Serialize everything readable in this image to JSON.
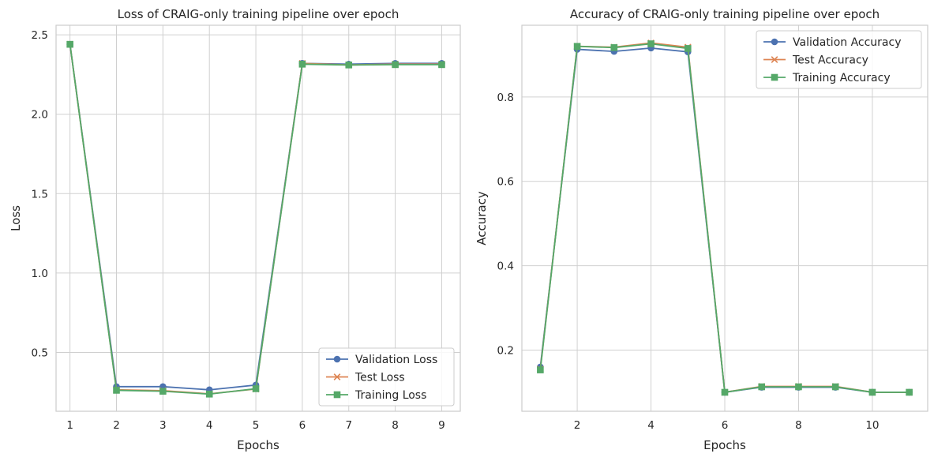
{
  "colors": {
    "validation": "#4c72b0",
    "test": "#dd8452",
    "training": "#55a868",
    "grid": "#d0d0d0",
    "frame": "#cccccc"
  },
  "chart_data": [
    {
      "type": "line",
      "title": "Loss of CRAIG-only training pipeline over epoch",
      "xlabel": "Epochs",
      "ylabel": "Loss",
      "xlim": [
        0.7,
        9.4
      ],
      "ylim": [
        0.13,
        2.56
      ],
      "xticks": [
        1,
        2,
        3,
        4,
        5,
        6,
        7,
        8,
        9
      ],
      "yticks": [
        0.5,
        1.0,
        1.5,
        2.0,
        2.5
      ],
      "ytick_labels": [
        "0.5",
        "1.0",
        "1.5",
        "2.0",
        "2.5"
      ],
      "grid": true,
      "legend_position": "lower-right",
      "x": [
        1,
        2,
        3,
        4,
        5,
        6,
        7,
        8,
        9
      ],
      "series": [
        {
          "name": "Validation Loss",
          "marker": "circle",
          "color": "validation",
          "values": [
            2.44,
            0.285,
            0.285,
            0.265,
            0.295,
            2.32,
            2.315,
            2.32,
            2.32
          ]
        },
        {
          "name": "Test Loss",
          "marker": "x",
          "color": "test",
          "values": [
            2.44,
            0.265,
            0.26,
            0.24,
            0.27,
            2.32,
            2.31,
            2.315,
            2.315
          ]
        },
        {
          "name": "Training Loss",
          "marker": "square",
          "color": "training",
          "values": [
            2.44,
            0.262,
            0.256,
            0.238,
            0.272,
            2.315,
            2.31,
            2.312,
            2.312
          ]
        }
      ]
    },
    {
      "type": "line",
      "title": "Accuracy of CRAIG-only training pipeline over epoch",
      "xlabel": "Epochs",
      "ylabel": "Accuracy",
      "xlim": [
        0.5,
        11.5
      ],
      "ylim": [
        0.055,
        0.97
      ],
      "xticks": [
        2,
        4,
        6,
        8,
        10
      ],
      "yticks": [
        0.2,
        0.4,
        0.6,
        0.8
      ],
      "ytick_labels": [
        "0.2",
        "0.4",
        "0.6",
        "0.8"
      ],
      "grid": true,
      "legend_position": "upper-right",
      "x": [
        1,
        2,
        3,
        4,
        5,
        6,
        7,
        8,
        9,
        10,
        11
      ],
      "series": [
        {
          "name": "Validation Accuracy",
          "marker": "circle",
          "color": "validation",
          "values": [
            0.16,
            0.913,
            0.908,
            0.916,
            0.907,
            0.1,
            0.112,
            0.112,
            0.112,
            0.1,
            0.1
          ]
        },
        {
          "name": "Test Accuracy",
          "marker": "x",
          "color": "test",
          "values": [
            0.155,
            0.92,
            0.918,
            0.928,
            0.918,
            0.1,
            0.114,
            0.114,
            0.114,
            0.1,
            0.1
          ]
        },
        {
          "name": "Training Accuracy",
          "marker": "square",
          "color": "training",
          "values": [
            0.153,
            0.92,
            0.917,
            0.926,
            0.915,
            0.1,
            0.113,
            0.113,
            0.113,
            0.1,
            0.1
          ]
        }
      ]
    }
  ]
}
